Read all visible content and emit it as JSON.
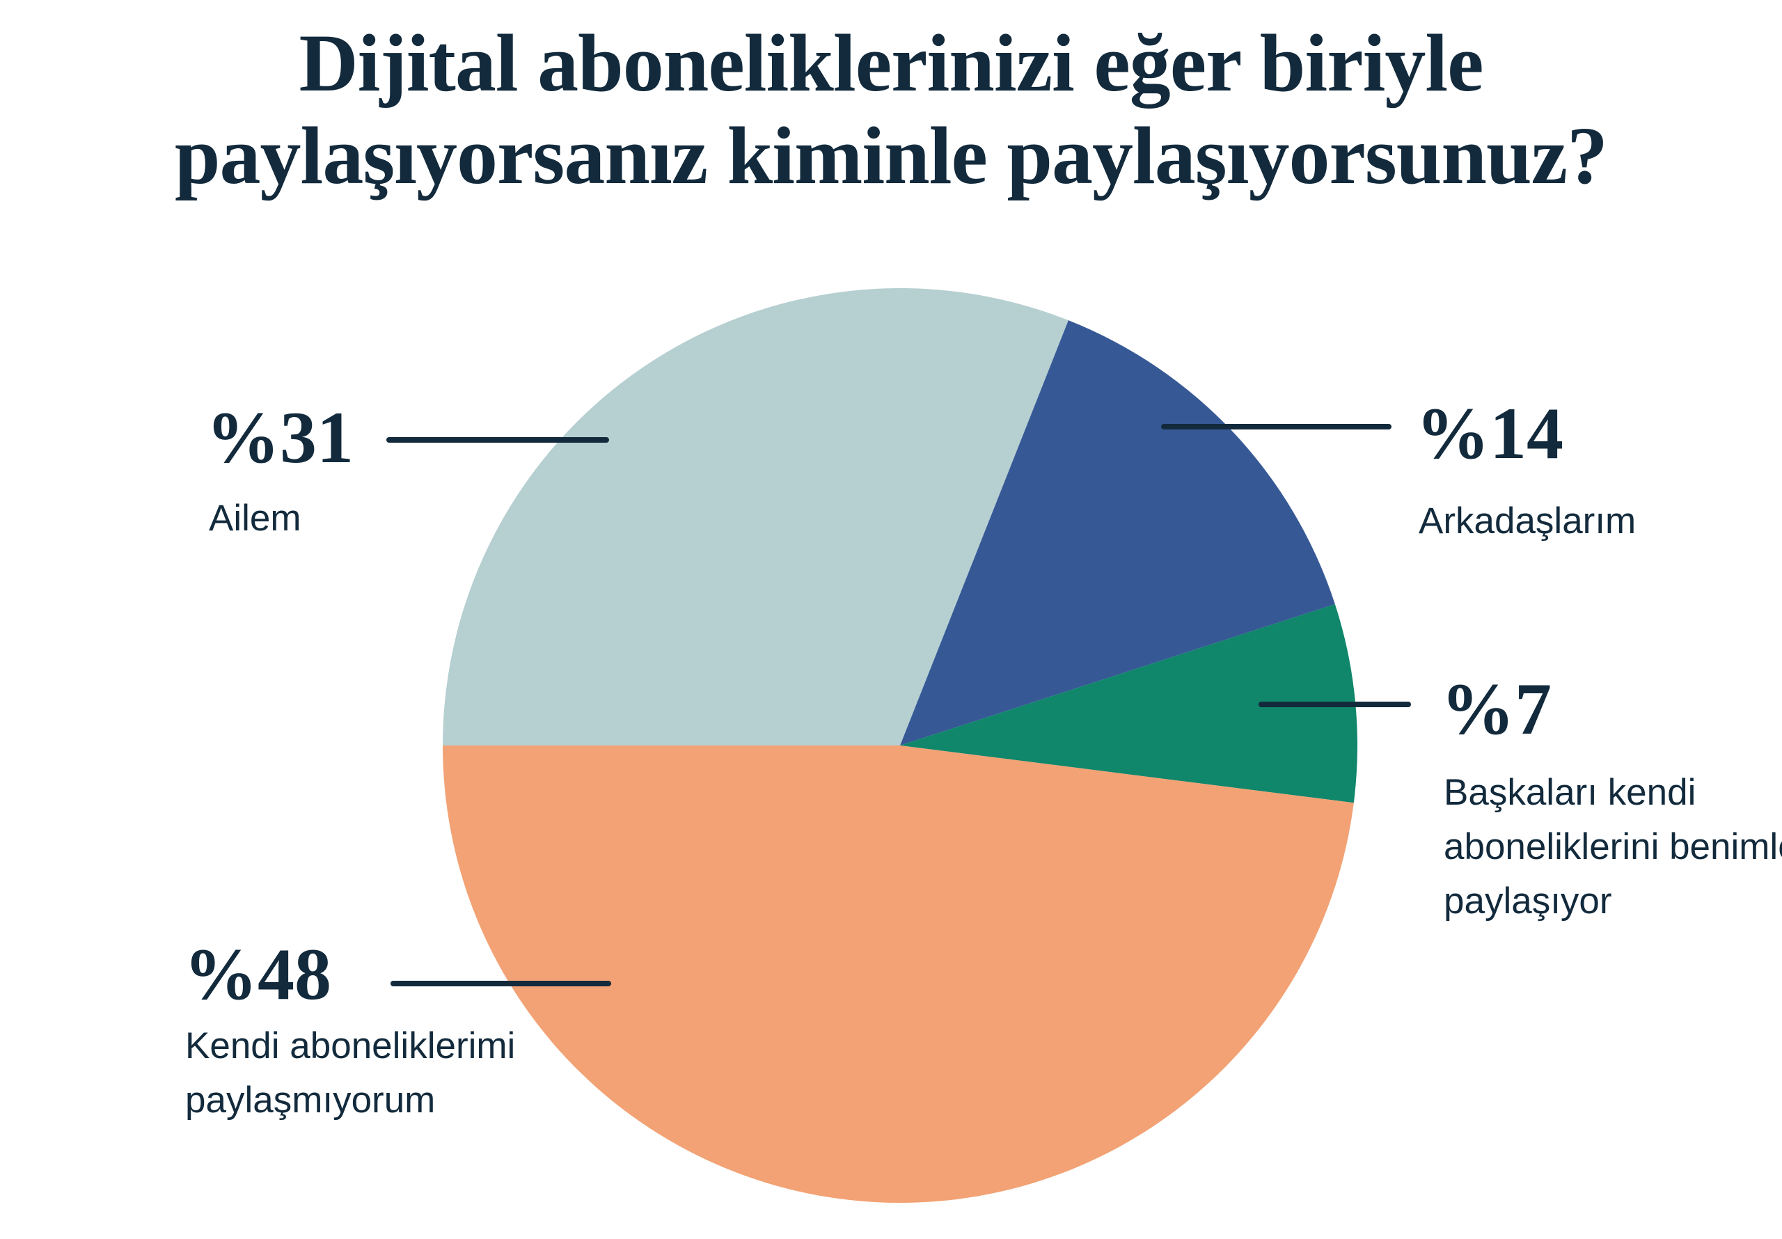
{
  "title": {
    "line1": "Dijital aboneliklerinizi eğer biriyle",
    "line2": "paylaşıyorsanız kiminle paylaşıyorsunuz?"
  },
  "colors": {
    "text": "#122a3c",
    "leader_line": "#122a3c",
    "background": "#ffffff"
  },
  "chart_data": {
    "type": "pie",
    "title": "Dijital aboneliklerinizi eğer biriyle paylaşıyorsanız kiminle paylaşıyorsunuz?",
    "start_angle_deg_from_top": -90,
    "direction": "clockwise",
    "legend_position": "callout-labels",
    "grid": false,
    "slices": [
      {
        "label": "Ailem",
        "value": 31,
        "pct_label": "%31",
        "color": "#b6cfd1"
      },
      {
        "label": "Arkadaşlarım",
        "value": 14,
        "pct_label": "%14",
        "color": "#365996"
      },
      {
        "label": "Başkaları kendi aboneliklerini benimle paylaşıyor",
        "value": 7,
        "pct_label": "%7",
        "color": "#10866b"
      },
      {
        "label": "Kendi aboneliklerimi paylaşmıyorum",
        "value": 48,
        "pct_label": "%48",
        "color": "#f2a274"
      }
    ]
  }
}
